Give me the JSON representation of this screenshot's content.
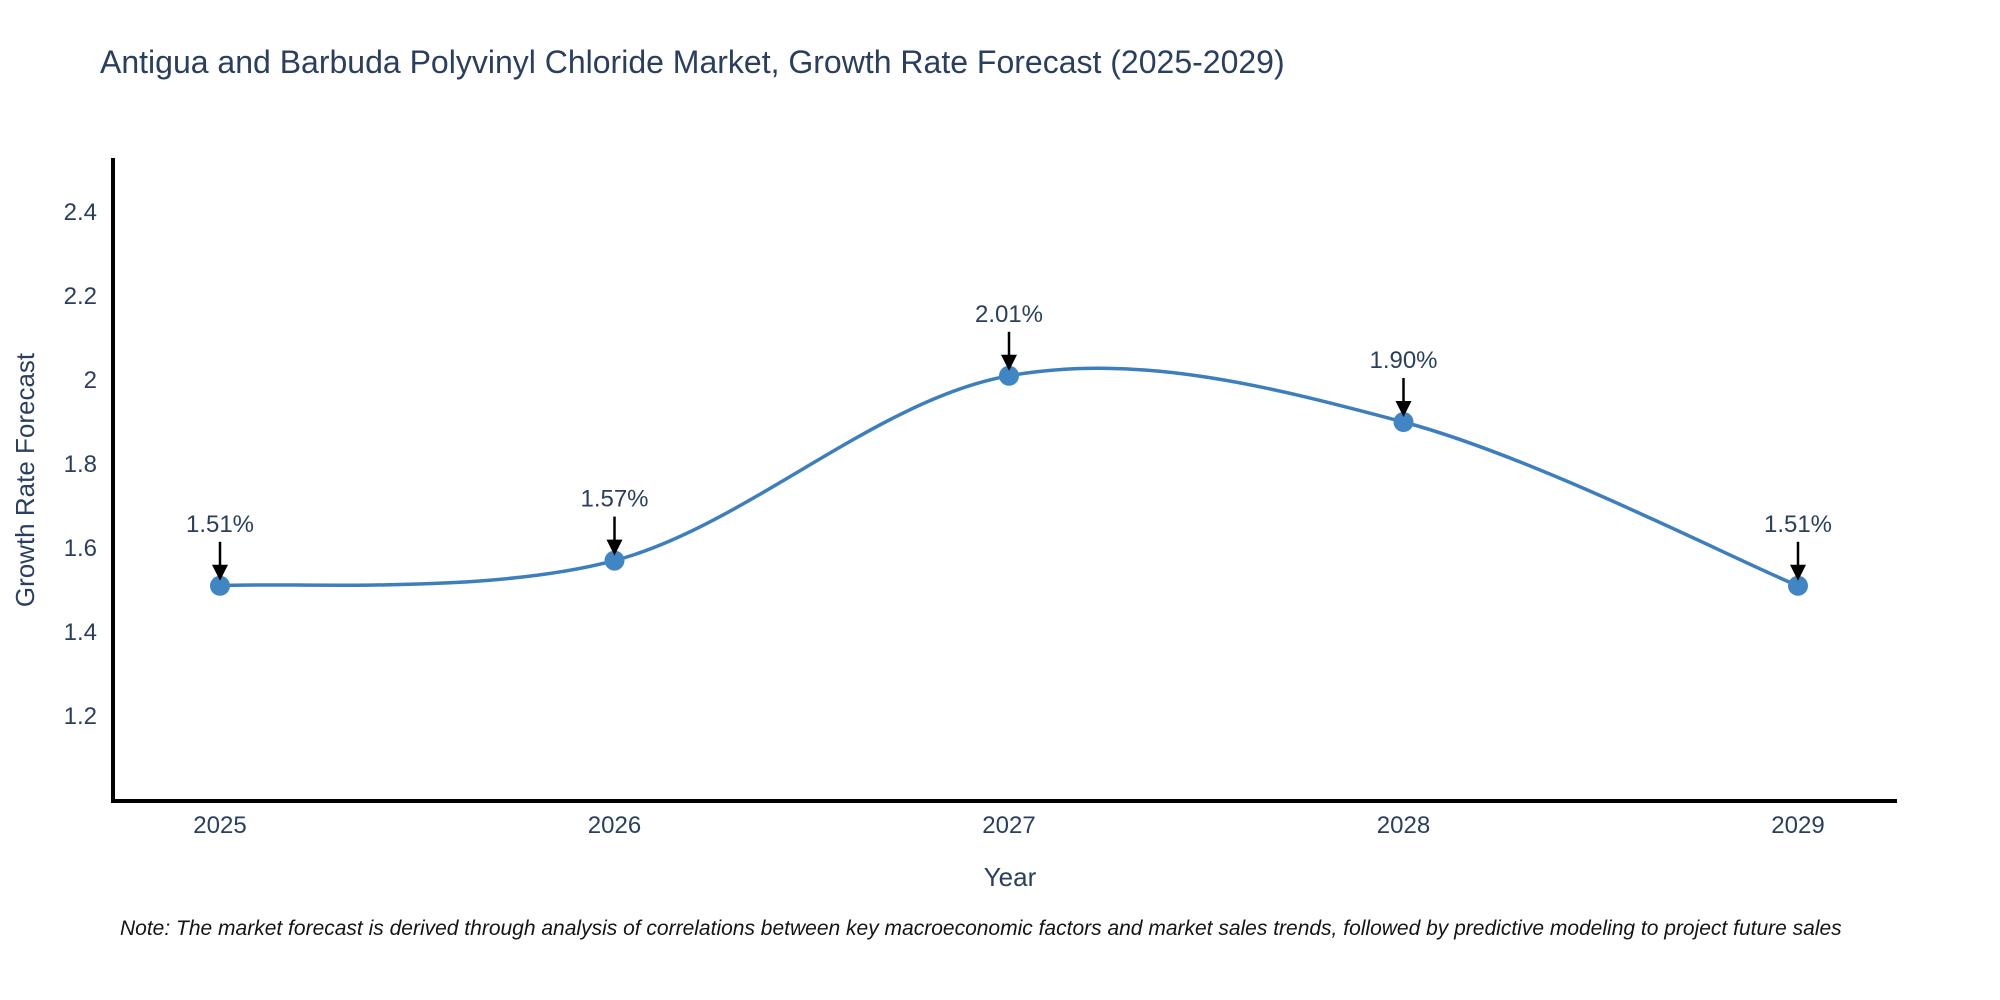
{
  "title": "Antigua and Barbuda Polyvinyl Chloride Market, Growth Rate Forecast (2025-2029)",
  "note": "Note: The market forecast is derived through analysis of correlations between key macroeconomic factors and market sales trends, followed by predictive modeling to project future sales",
  "chart_data": {
    "type": "line",
    "title": "Antigua and Barbuda Polyvinyl Chloride Market, Growth Rate Forecast (2025-2029)",
    "xlabel": "Year",
    "ylabel": "Growth Rate Forecast",
    "categories": [
      "2025",
      "2026",
      "2027",
      "2028",
      "2029"
    ],
    "series": [
      {
        "name": "Growth Rate Forecast",
        "values": [
          1.51,
          1.57,
          2.01,
          1.9,
          1.51
        ]
      }
    ],
    "point_labels": [
      "1.51%",
      "1.57%",
      "2.01%",
      "1.90%",
      "1.51%"
    ],
    "x_tick_labels": [
      "2025",
      "2026",
      "2027",
      "2028",
      "2029"
    ],
    "y_ticks": [
      1.2,
      1.4,
      1.6,
      1.8,
      2.0,
      2.2,
      2.4
    ],
    "y_tick_labels": [
      "1.2",
      "1.4",
      "1.6",
      "1.8",
      "2",
      "2.2",
      "2.4"
    ],
    "ylim": [
      1.0,
      2.55
    ],
    "grid": false,
    "legend": false,
    "line_shape": "spline",
    "annotations_have_arrows": true,
    "colors": {
      "line": "#3d7ebd",
      "marker": "#4186c4",
      "axis": "#000000",
      "tick_text": "#2a3f5f",
      "axis_title_text": "#2a3f5f",
      "annotation_text": "#2a3f5f",
      "arrow": "#000000",
      "background": "#ffffff"
    }
  }
}
